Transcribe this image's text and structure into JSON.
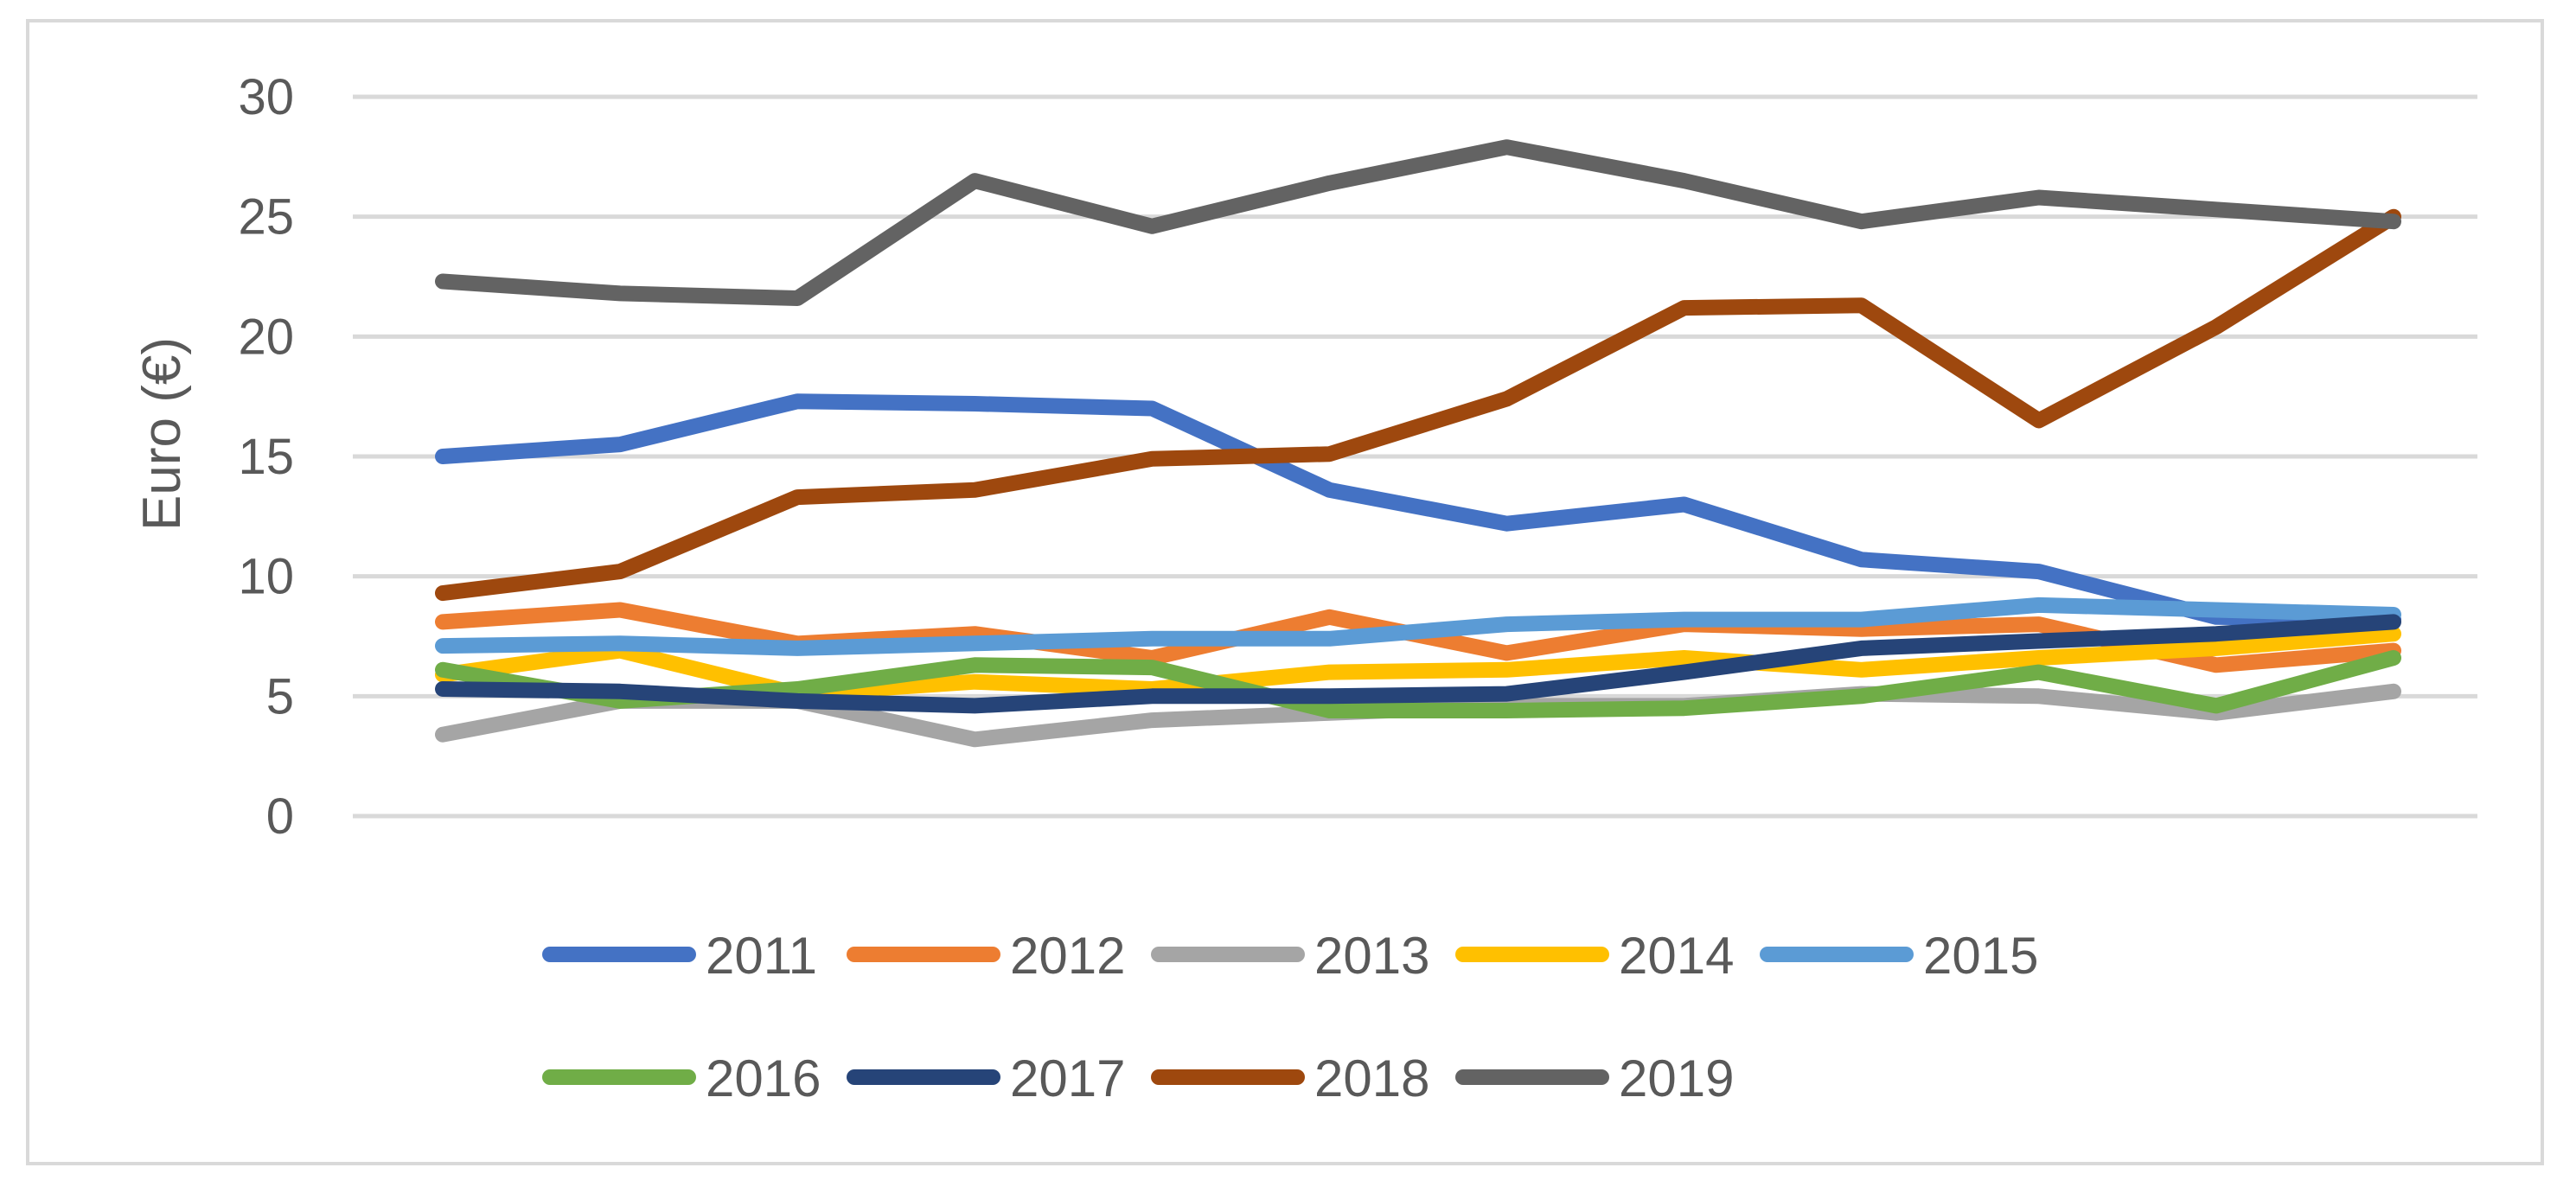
{
  "chart_data": {
    "type": "line",
    "title": "",
    "xlabel": "",
    "ylabel": "Euro (€)",
    "ylim": [
      0,
      30
    ],
    "yticks": [
      0,
      5,
      10,
      15,
      20,
      25,
      30
    ],
    "grid": true,
    "legend_position": "bottom",
    "x": [
      1,
      2,
      3,
      4,
      5,
      6,
      7,
      8,
      9,
      10,
      11,
      12
    ],
    "series": [
      {
        "name": "2011",
        "color": "#4472C4",
        "values": [
          15.0,
          15.5,
          17.3,
          17.2,
          17.0,
          13.6,
          12.2,
          13.0,
          10.7,
          10.2,
          8.3,
          8.2
        ]
      },
      {
        "name": "2012",
        "color": "#ED7D31",
        "values": [
          8.1,
          8.6,
          7.2,
          7.6,
          6.6,
          8.3,
          6.8,
          8.0,
          7.8,
          8.0,
          6.3,
          6.9
        ]
      },
      {
        "name": "2013",
        "color": "#A5A5A5",
        "values": [
          3.4,
          4.8,
          4.8,
          3.2,
          4.0,
          4.3,
          4.6,
          4.6,
          5.1,
          5.0,
          4.3,
          5.2
        ]
      },
      {
        "name": "2014",
        "color": "#FFC000",
        "values": [
          5.9,
          6.9,
          5.1,
          5.6,
          5.3,
          6.0,
          6.1,
          6.6,
          6.1,
          6.6,
          7.0,
          7.6
        ]
      },
      {
        "name": "2015",
        "color": "#5B9BD5",
        "values": [
          7.1,
          7.2,
          7.0,
          7.2,
          7.4,
          7.4,
          8.0,
          8.2,
          8.2,
          8.8,
          8.6,
          8.4
        ]
      },
      {
        "name": "2016",
        "color": "#70AD47",
        "values": [
          6.1,
          4.8,
          5.3,
          6.3,
          6.2,
          4.4,
          4.4,
          4.5,
          5.0,
          6.0,
          4.6,
          6.6
        ]
      },
      {
        "name": "2017",
        "color": "#264478",
        "values": [
          5.3,
          5.2,
          4.8,
          4.6,
          5.0,
          5.0,
          5.1,
          6.0,
          7.0,
          7.3,
          7.6,
          8.1
        ]
      },
      {
        "name": "2018",
        "color": "#9E480E",
        "values": [
          9.3,
          10.2,
          13.3,
          13.6,
          14.9,
          15.1,
          17.4,
          21.2,
          21.3,
          16.5,
          20.4,
          25.0
        ]
      },
      {
        "name": "2019",
        "color": "#636363",
        "values": [
          22.3,
          21.8,
          21.6,
          26.5,
          24.6,
          26.4,
          27.9,
          26.5,
          24.8,
          25.8,
          25.3,
          24.8
        ]
      }
    ]
  }
}
